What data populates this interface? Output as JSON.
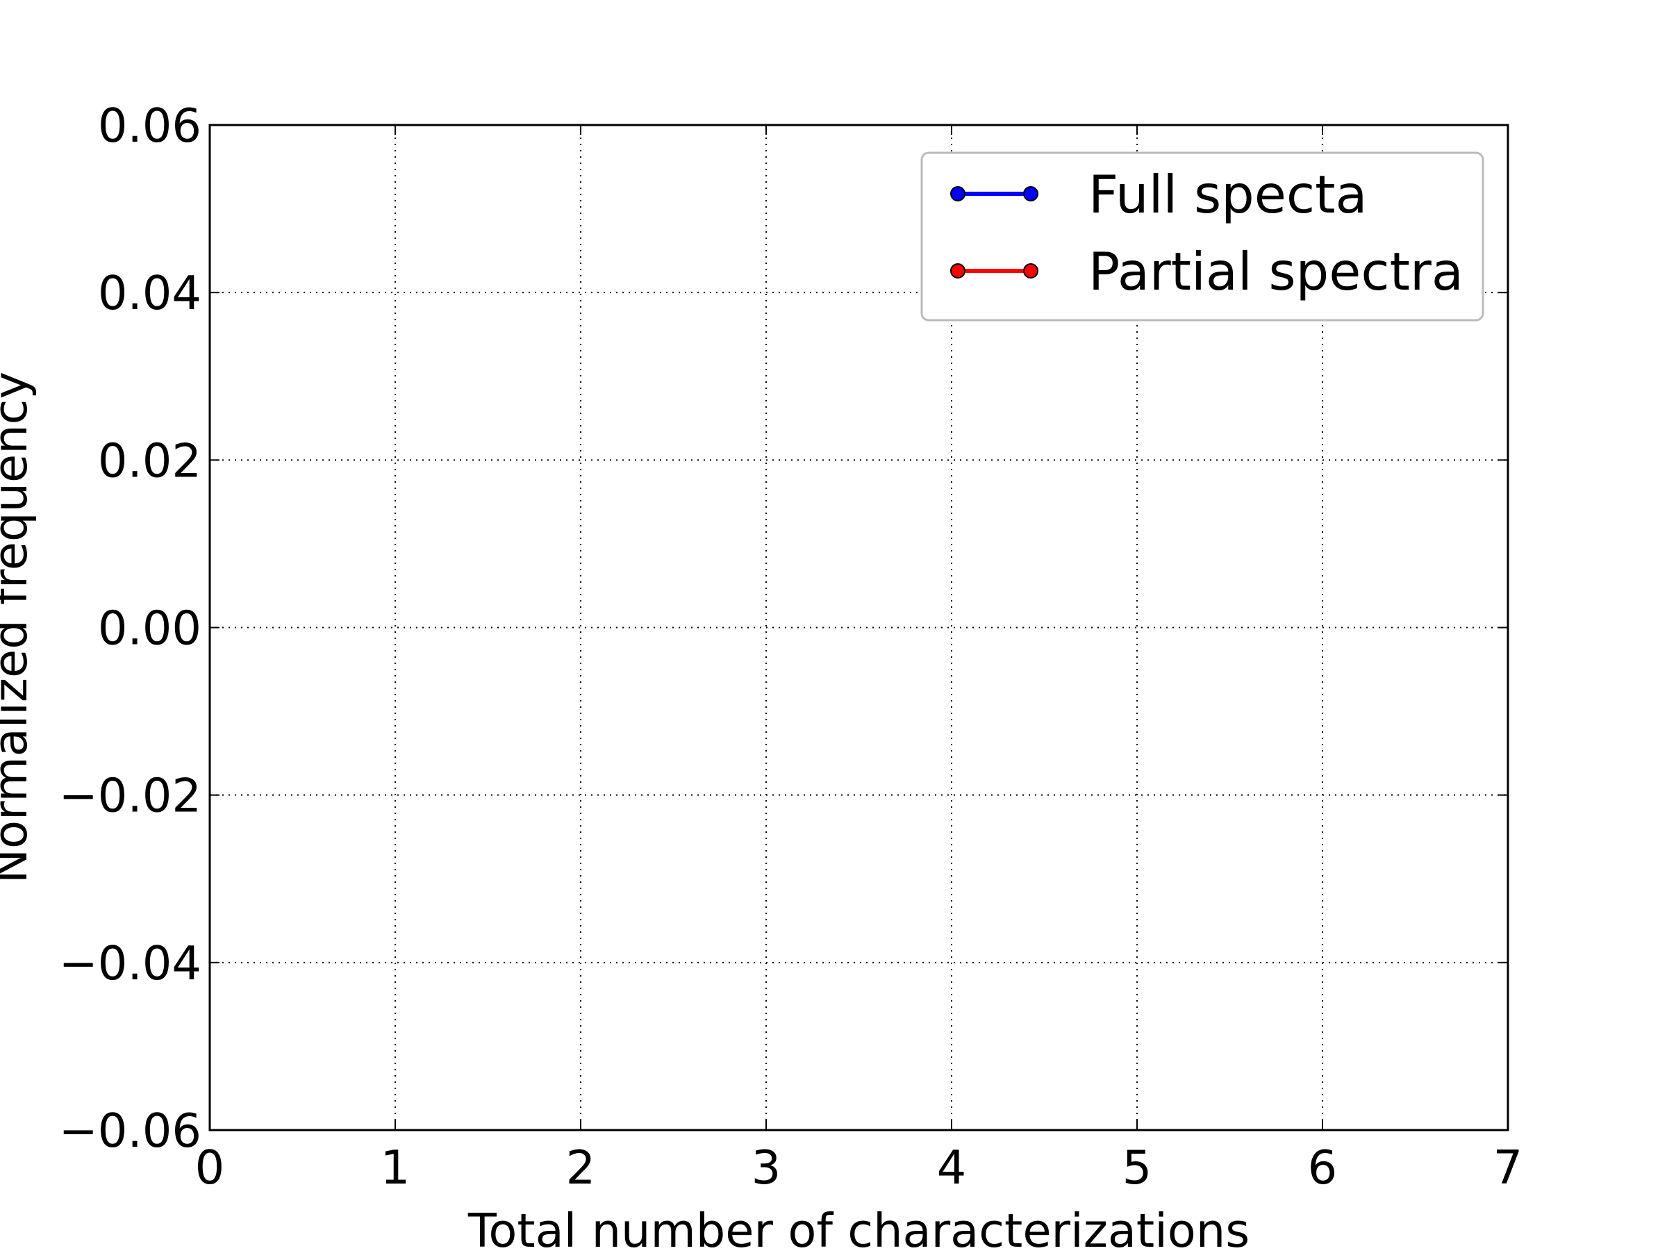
{
  "chart_data": {
    "type": "line",
    "title": "",
    "xlabel": "Total number of characterizations",
    "ylabel": "Normalized frequency",
    "xlim": [
      0,
      7
    ],
    "ylim": [
      -0.06,
      0.06
    ],
    "x_ticks": [
      0,
      1,
      2,
      3,
      4,
      5,
      6,
      7
    ],
    "y_ticks": [
      -0.06,
      -0.04,
      -0.02,
      0.0,
      0.02,
      0.04,
      0.06
    ],
    "x_tick_labels": [
      "0",
      "1",
      "2",
      "3",
      "4",
      "5",
      "6",
      "7"
    ],
    "y_tick_labels": [
      "−0.06",
      "−0.04",
      "−0.02",
      "0.00",
      "0.02",
      "0.04",
      "0.06"
    ],
    "grid": true,
    "legend_position": "top-right",
    "series": [
      {
        "name": "Full specta",
        "color": "#0000ff",
        "marker": "circle",
        "x": [],
        "y": []
      },
      {
        "name": "Partial spectra",
        "color": "#ff0000",
        "marker": "circle",
        "x": [],
        "y": []
      }
    ]
  }
}
